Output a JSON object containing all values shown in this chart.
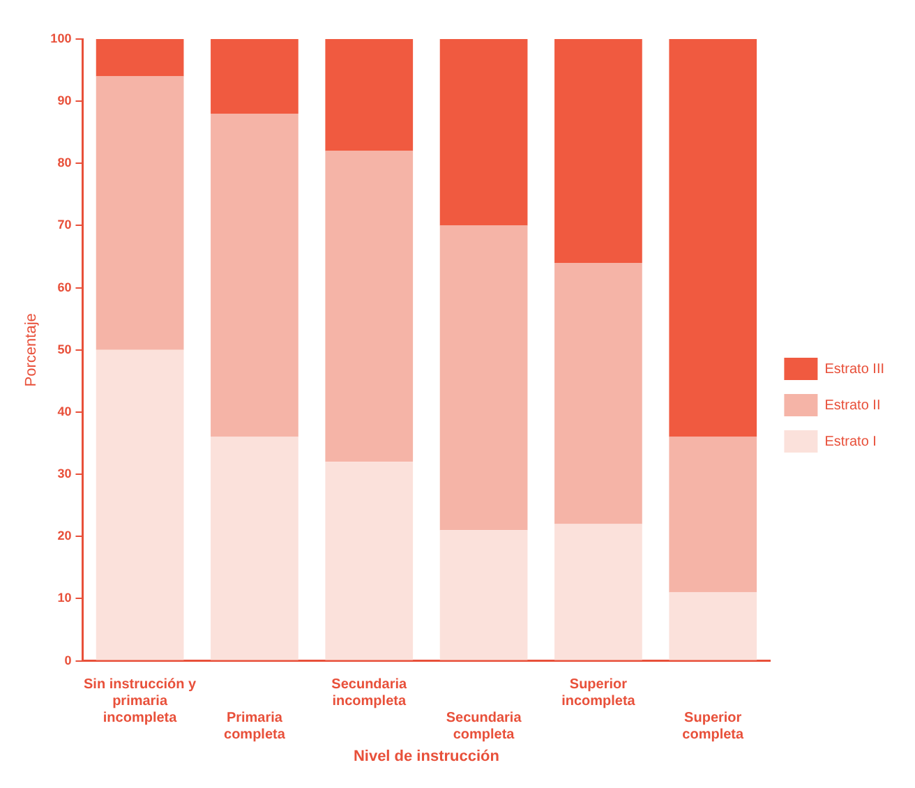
{
  "chart_data": {
    "type": "bar",
    "stacked": true,
    "xlabel": "Nivel de instrucción",
    "ylabel": "Porcentaje",
    "categories": [
      "Sin instrucción y primaria incompleta",
      "Primaria completa",
      "Secundaria incompleta",
      "Secundaria completa",
      "Superior incompleta",
      "Superior completa"
    ],
    "series": [
      {
        "name": "Estrato I",
        "color": "#fbe1db",
        "values": [
          50,
          36,
          32,
          21,
          22,
          11
        ]
      },
      {
        "name": "Estrato II",
        "color": "#f5b4a7",
        "values": [
          44,
          52,
          50,
          49,
          42,
          25
        ]
      },
      {
        "name": "Estrato III",
        "color": "#f05a40",
        "values": [
          6,
          12,
          18,
          30,
          36,
          64
        ]
      }
    ],
    "ylim": [
      0,
      100
    ],
    "yticks": [
      0,
      10,
      20,
      30,
      40,
      50,
      60,
      70,
      80,
      90,
      100
    ],
    "grid": false,
    "legend": "right"
  }
}
